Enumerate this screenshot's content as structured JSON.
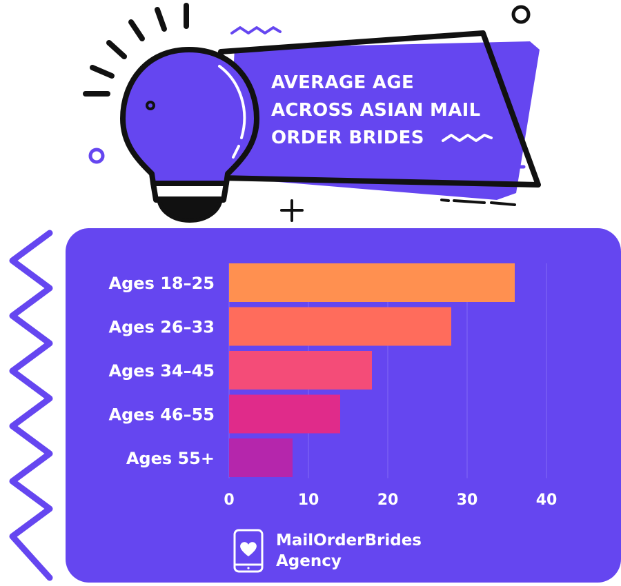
{
  "header": {
    "title_lines": [
      "AVERAGE AGE",
      "ACROSS ASIAN MAIL",
      "ORDER BRIDES"
    ]
  },
  "brand": {
    "line1": "MailOrderBrides",
    "line2": "Agency",
    "icon": "phone-heart-icon"
  },
  "colors": {
    "accent": "#6546f0",
    "bar_colors": [
      "#ff9050",
      "#ff6c5c",
      "#f44c78",
      "#e02b8a",
      "#b526ac"
    ]
  },
  "chart_data": {
    "type": "bar",
    "orientation": "horizontal",
    "categories": [
      "Ages 18–25",
      "Ages 26–33",
      "Ages 34–45",
      "Ages 46–55",
      "Ages 55+"
    ],
    "values": [
      36,
      28,
      18,
      14,
      8
    ],
    "xticks": [
      "0",
      "10",
      "20",
      "30",
      "40"
    ],
    "xlim": [
      0,
      40
    ],
    "grid": true,
    "title": "",
    "xlabel": "",
    "ylabel": ""
  }
}
